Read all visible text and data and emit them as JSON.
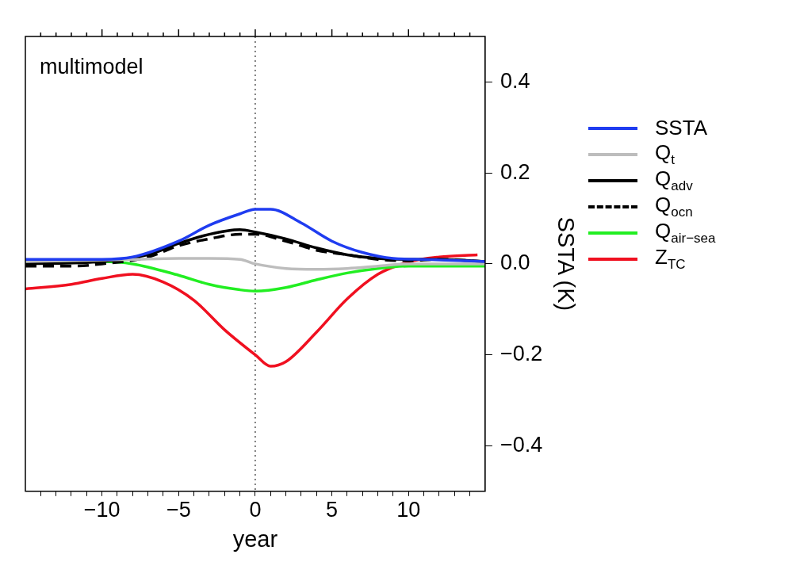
{
  "chart_data": {
    "type": "line",
    "xlabel": "year",
    "ylabel": "SSTA (K)",
    "xlim": [
      -15,
      15
    ],
    "ylim": [
      -0.5,
      0.5
    ],
    "xticks": [
      {
        "value": -14,
        "label": null
      },
      {
        "value": -13,
        "label": null
      },
      {
        "value": -12,
        "label": null
      },
      {
        "value": -11,
        "label": null
      },
      -10,
      {
        "value": -9,
        "label": null
      },
      {
        "value": -8,
        "label": null
      },
      {
        "value": -7,
        "label": null
      },
      {
        "value": -6,
        "label": null
      },
      -5,
      {
        "value": -4,
        "label": null
      },
      {
        "value": -3,
        "label": null
      },
      {
        "value": -2,
        "label": null
      },
      {
        "value": -1,
        "label": null
      },
      0,
      {
        "value": 1,
        "label": null
      },
      {
        "value": 2,
        "label": null
      },
      {
        "value": 3,
        "label": null
      },
      {
        "value": 4,
        "label": null
      },
      5,
      {
        "value": 6,
        "label": null
      },
      {
        "value": 7,
        "label": null
      },
      {
        "value": 8,
        "label": null
      },
      {
        "value": 9,
        "label": null
      },
      10,
      {
        "value": 11,
        "label": null
      },
      {
        "value": 12,
        "label": null
      },
      {
        "value": 13,
        "label": null
      },
      {
        "value": 14,
        "label": null
      }
    ],
    "yticks": [
      {
        "value": -0.4,
        "label": "−0.4"
      },
      {
        "value": -0.2,
        "label": "−0.2"
      },
      {
        "value": 0,
        "label": "0.0"
      },
      {
        "value": 0.2,
        "label": "0.2"
      },
      {
        "value": 0.4,
        "label": "0.4"
      }
    ],
    "grid": false,
    "legend": "right",
    "marker": "none",
    "ref_lines": [
      {
        "axis": "x",
        "value": 0,
        "label": null,
        "color": "#000000",
        "line_style": "dotted"
      }
    ],
    "annotations": [
      "multimodel"
    ],
    "series": [
      {
        "name": "SSTA",
        "color": "#1f3cf0",
        "line_style": "solid",
        "x": [
          -15,
          -10,
          -8,
          -5,
          -3,
          -1,
          0,
          1,
          3,
          5,
          7,
          9,
          11,
          15
        ],
        "values": [
          0.01,
          0.01,
          0.015,
          0.05,
          0.085,
          0.11,
          0.12,
          0.12,
          0.09,
          0.05,
          0.025,
          0.012,
          0.01,
          0.005
        ]
      },
      {
        "name": "Q$_{t}$",
        "color": "#bdbdbd",
        "line_style": "solid",
        "x": [
          -15,
          -8,
          -5,
          -3,
          -1,
          0,
          2,
          4,
          6,
          8,
          10,
          15
        ],
        "values": [
          0.005,
          0.01,
          0.012,
          0.012,
          0.01,
          0,
          -0.01,
          -0.012,
          -0.01,
          -0.005,
          0,
          0
        ]
      },
      {
        "name": "Q$_{adv}$",
        "color": "#000000",
        "line_style": "solid",
        "x": [
          -15,
          -10,
          -7,
          -5,
          -3,
          -1,
          0,
          2,
          4,
          6,
          8,
          10,
          12,
          15
        ],
        "values": [
          0,
          0.005,
          0.02,
          0.045,
          0.065,
          0.075,
          0.07,
          0.055,
          0.035,
          0.02,
          0.012,
          0.01,
          0.01,
          0.005
        ]
      },
      {
        "name": "Q$_{ocn}$",
        "color": "#000000",
        "line_style": "dashed",
        "x": [
          -15,
          -12,
          -10,
          -7,
          -5,
          -3,
          -1,
          0,
          2,
          4,
          6,
          8,
          10,
          12,
          15
        ],
        "values": [
          -0.005,
          -0.005,
          0,
          0.015,
          0.04,
          0.055,
          0.065,
          0.065,
          0.05,
          0.03,
          0.02,
          0.01,
          0.007,
          0.01,
          0.005
        ]
      },
      {
        "name": "Q$_{air−sea}$",
        "color": "#22ee22",
        "line_style": "solid",
        "x": [
          -15,
          -10,
          -8,
          -5,
          -3,
          -1,
          0,
          2,
          4,
          6,
          8,
          10,
          15
        ],
        "values": [
          0.005,
          0.005,
          0,
          -0.025,
          -0.045,
          -0.057,
          -0.06,
          -0.052,
          -0.035,
          -0.02,
          -0.01,
          -0.005,
          -0.005
        ]
      },
      {
        "name": "Z$_{TC}$",
        "color": "#f01020",
        "line_style": "solid",
        "x": [
          -15,
          -12,
          -10,
          -8,
          -6,
          -4,
          -2,
          0,
          1,
          2,
          4,
          6,
          8,
          10,
          12,
          14.5
        ],
        "values": [
          -0.055,
          -0.045,
          -0.032,
          -0.023,
          -0.04,
          -0.08,
          -0.145,
          -0.2,
          -0.225,
          -0.215,
          -0.15,
          -0.077,
          -0.023,
          0.004,
          0.015,
          0.02
        ]
      }
    ]
  }
}
